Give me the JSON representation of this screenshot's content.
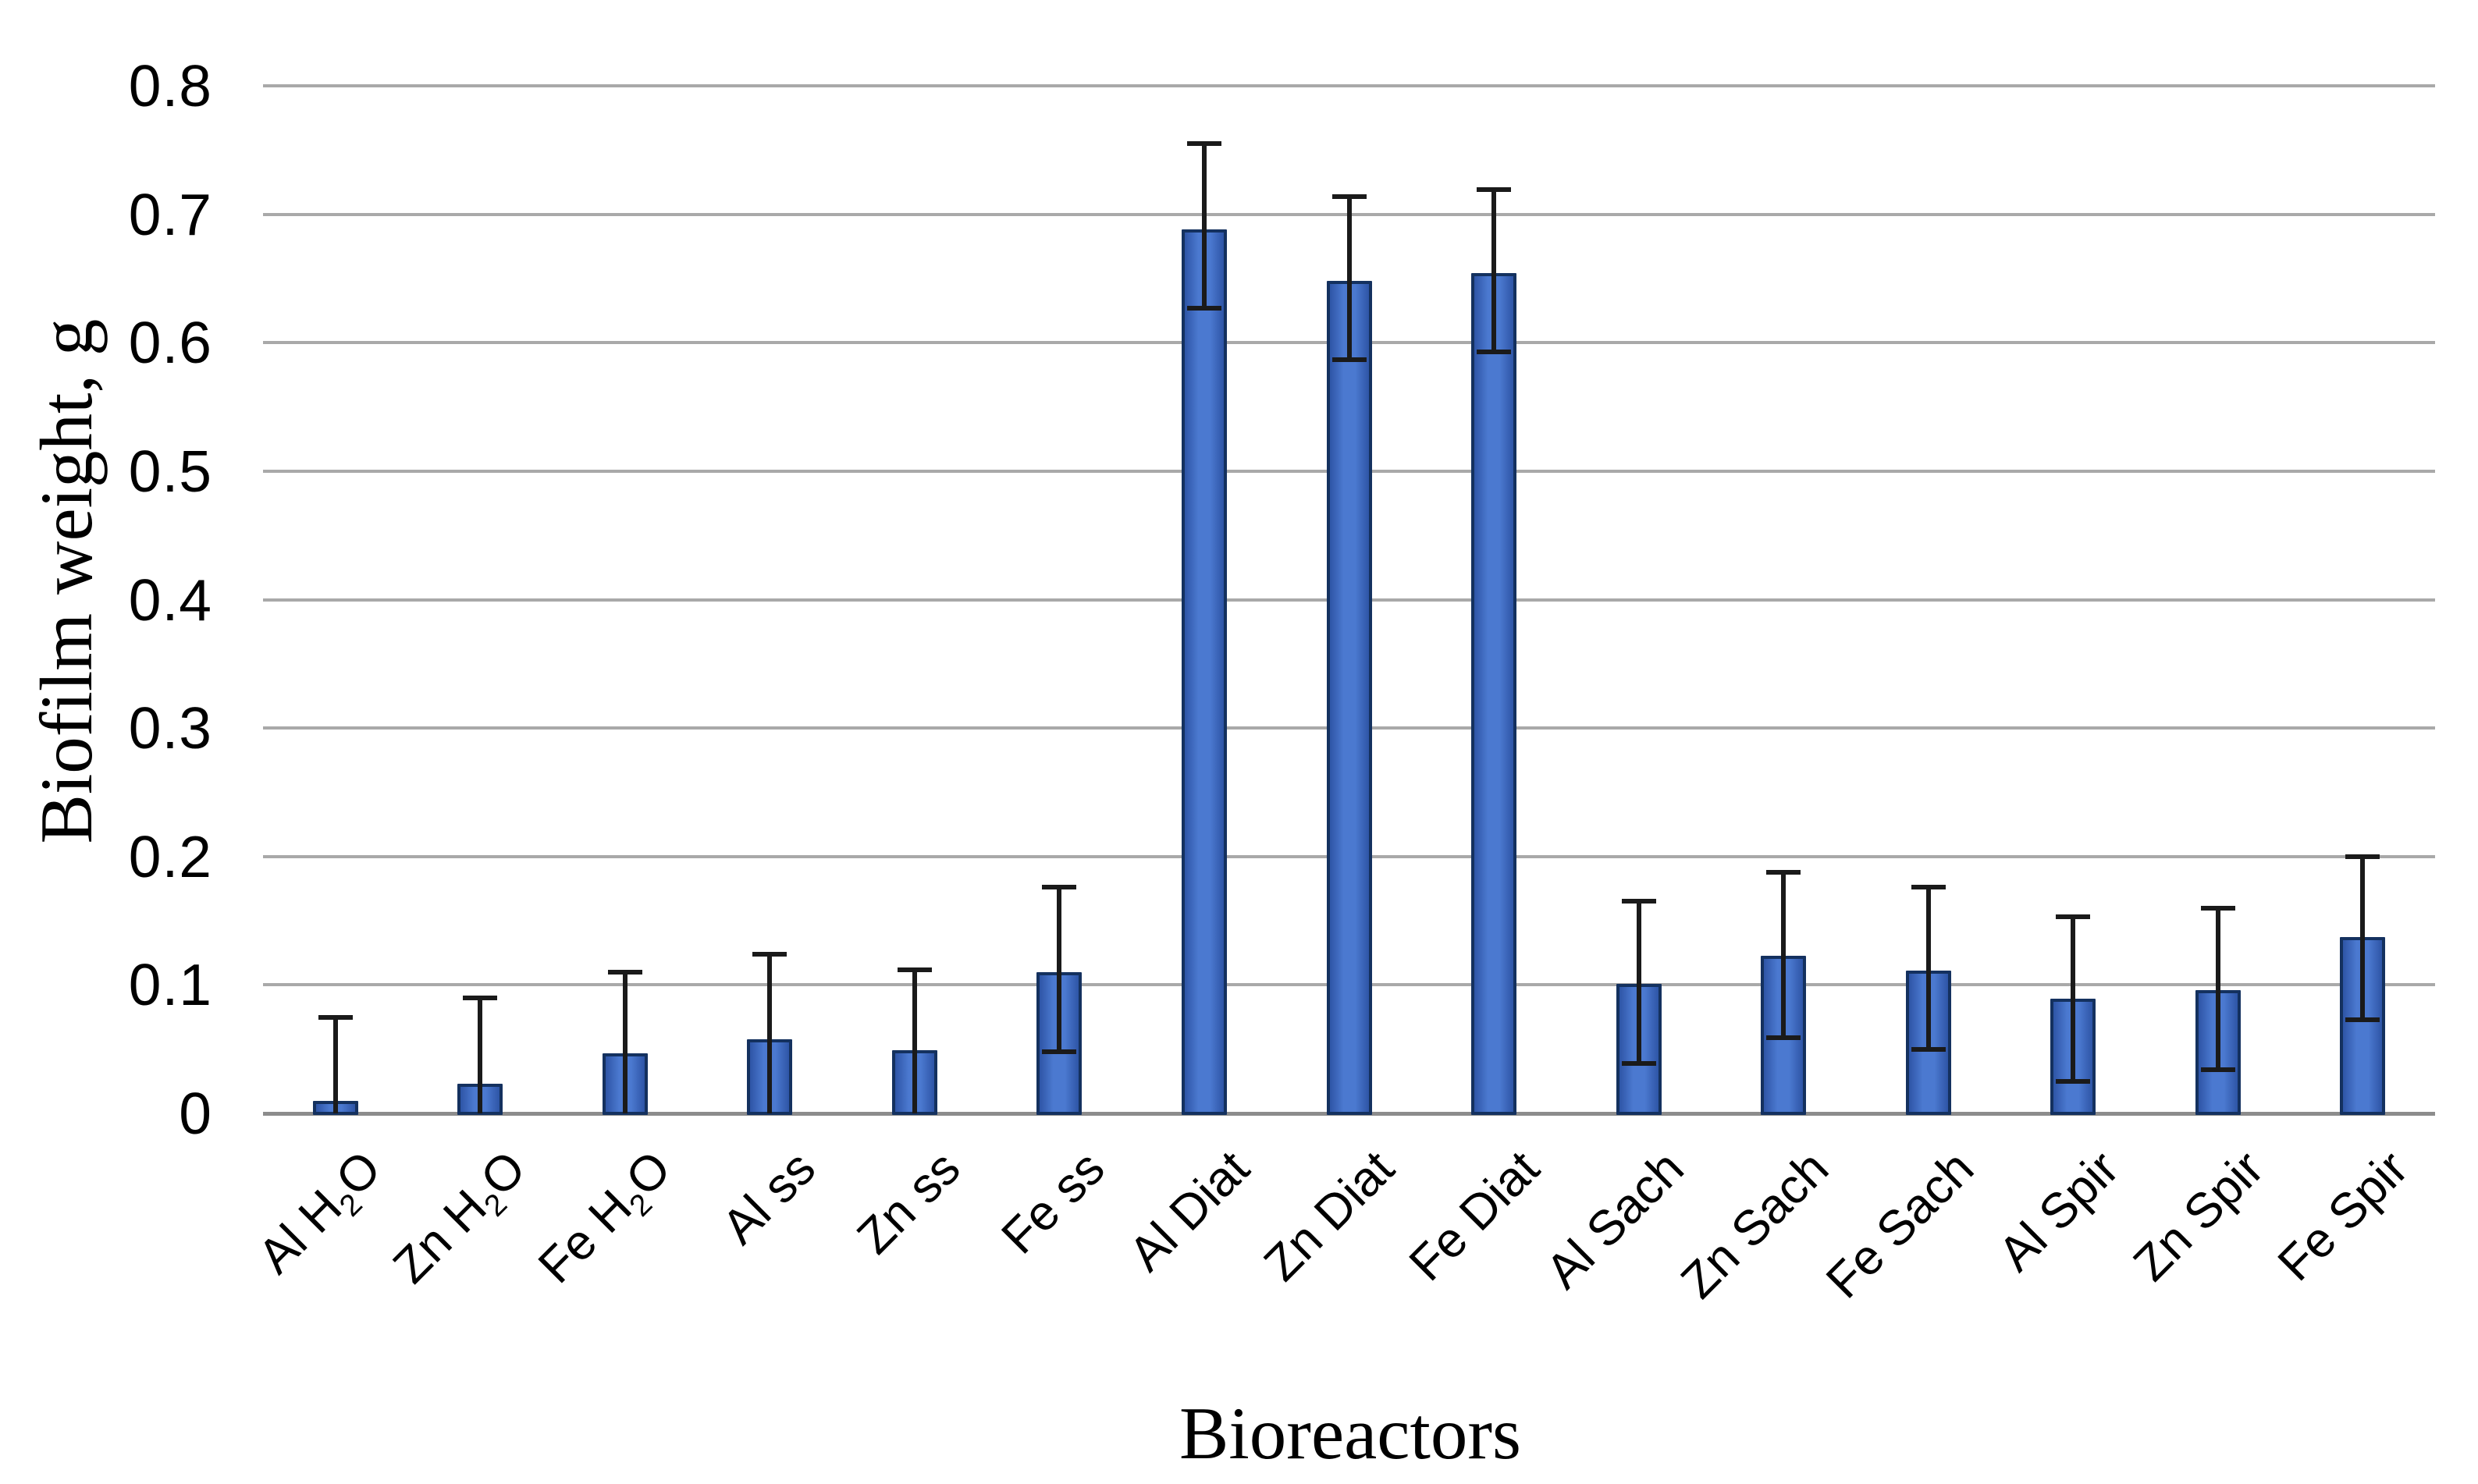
{
  "chart_data": {
    "type": "bar",
    "title": "",
    "xlabel": "Bioreactors",
    "ylabel": "Biofilm weight, g",
    "categories": [
      "Al H₂O",
      "Zn H₂O",
      "Fe H₂O",
      "Al ss",
      "Zn ss",
      "Fe ss",
      "Al Diat",
      "Zn Diat",
      "Fe Diat",
      "Al Sach",
      "Zn Sach",
      "Fe Sach",
      "Al Spir",
      "Zn Spir",
      "Fe Spir"
    ],
    "values": [
      0.01,
      0.023,
      0.047,
      0.058,
      0.049,
      0.11,
      0.688,
      0.648,
      0.654,
      0.101,
      0.123,
      0.111,
      0.089,
      0.096,
      0.137
    ],
    "error_plus": [
      0.065,
      0.067,
      0.063,
      0.066,
      0.063,
      0.066,
      0.067,
      0.066,
      0.065,
      0.064,
      0.065,
      0.065,
      0.064,
      0.064,
      0.063
    ],
    "error_minus": [
      0.065,
      0.067,
      0.063,
      0.066,
      0.063,
      0.062,
      0.061,
      0.061,
      0.061,
      0.062,
      0.064,
      0.061,
      0.064,
      0.062,
      0.064
    ],
    "error_note": "error bars clipped at 0; lower caps hidden for bars whose value minus error falls below 0",
    "ylim": [
      0,
      0.8
    ],
    "ytick_labels": [
      "0",
      "0.1",
      "0.2",
      "0.3",
      "0.4",
      "0.5",
      "0.6",
      "0.7",
      "0.8"
    ],
    "grid": "horizontal gridlines every 0.1, no vertical grid, no axis lines",
    "legend": "none",
    "colors": {
      "bar_fill": "#4472c4",
      "bar_fill_edge_shade": "#2e55a6",
      "bar_border": "#14315f",
      "error_bar": "#1a1a1a",
      "gridline": "#a9a9a9",
      "background": "#ffffff",
      "text": "#000000"
    }
  }
}
